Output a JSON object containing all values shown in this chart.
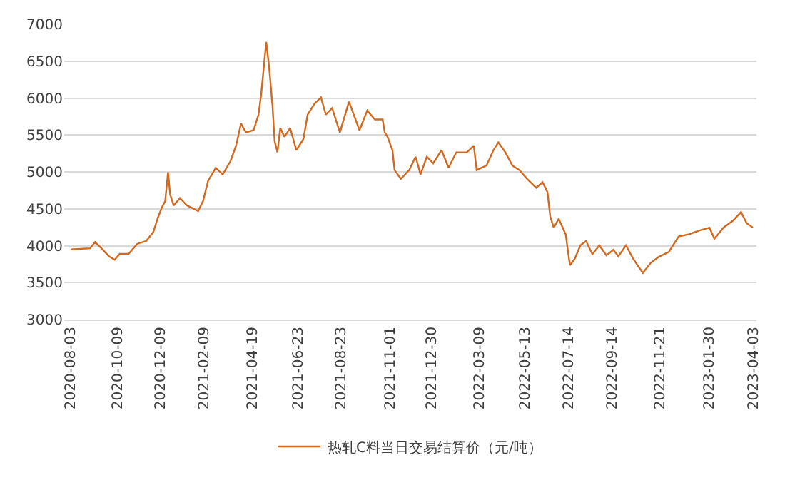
{
  "chart_data": {
    "type": "line",
    "x": [
      "2020-08-03",
      "2020-08-31",
      "2020-09-07",
      "2020-09-18",
      "2020-09-27",
      "2020-10-05",
      "2020-10-12",
      "2020-10-25",
      "2020-11-06",
      "2020-11-19",
      "2020-11-29",
      "2020-12-05",
      "2020-12-11",
      "2020-12-16",
      "2020-12-20",
      "2020-12-23",
      "2020-12-28",
      "2021-01-06",
      "2021-01-16",
      "2021-02-01",
      "2021-02-08",
      "2021-02-15",
      "2021-02-26",
      "2021-03-08",
      "2021-03-19",
      "2021-03-27",
      "2021-04-03",
      "2021-04-10",
      "2021-04-21",
      "2021-04-28",
      "2021-05-02",
      "2021-05-09",
      "2021-05-13",
      "2021-05-18",
      "2021-05-21",
      "2021-05-25",
      "2021-05-29",
      "2021-06-04",
      "2021-06-12",
      "2021-06-21",
      "2021-07-01",
      "2021-07-07",
      "2021-07-17",
      "2021-07-26",
      "2021-08-02",
      "2021-08-11",
      "2021-08-22",
      "2021-09-04",
      "2021-09-19",
      "2021-09-30",
      "2021-10-11",
      "2021-10-22",
      "2021-10-25",
      "2021-10-29",
      "2021-11-05",
      "2021-11-08",
      "2021-11-17",
      "2021-11-29",
      "2021-12-08",
      "2021-12-15",
      "2021-12-24",
      "2022-01-02",
      "2022-01-14",
      "2022-01-24",
      "2022-02-04",
      "2022-02-19",
      "2022-03-01",
      "2022-03-05",
      "2022-03-19",
      "2022-03-29",
      "2022-04-05",
      "2022-04-15",
      "2022-04-25",
      "2022-05-05",
      "2022-05-16",
      "2022-05-29",
      "2022-06-07",
      "2022-06-14",
      "2022-06-18",
      "2022-06-23",
      "2022-06-30",
      "2022-07-10",
      "2022-07-16",
      "2022-07-23",
      "2022-07-31",
      "2022-08-08",
      "2022-08-17",
      "2022-08-27",
      "2022-09-06",
      "2022-09-16",
      "2022-09-23",
      "2022-10-04",
      "2022-10-14",
      "2022-10-28",
      "2022-11-08",
      "2022-11-19",
      "2022-12-04",
      "2022-12-18",
      "2023-01-02",
      "2023-01-16",
      "2023-01-31",
      "2023-02-07",
      "2023-02-20",
      "2023-03-05",
      "2023-03-17",
      "2023-03-25",
      "2023-04-03"
    ],
    "series": [
      {
        "name": "热轧C料当日交易结算价（元/吨）",
        "color": "#d2691e",
        "values": [
          3950,
          3965,
          4050,
          3945,
          3855,
          3810,
          3890,
          3890,
          4025,
          4065,
          4185,
          4365,
          4515,
          4605,
          4995,
          4695,
          4545,
          4645,
          4545,
          4470,
          4605,
          4875,
          5055,
          4965,
          5145,
          5355,
          5655,
          5535,
          5565,
          5775,
          6070,
          6760,
          6430,
          5890,
          5415,
          5265,
          5595,
          5475,
          5595,
          5295,
          5445,
          5775,
          5925,
          6010,
          5775,
          5865,
          5535,
          5950,
          5565,
          5830,
          5710,
          5710,
          5535,
          5475,
          5295,
          5025,
          4905,
          5025,
          5205,
          4965,
          5205,
          5115,
          5295,
          5055,
          5265,
          5265,
          5355,
          5025,
          5085,
          5295,
          5400,
          5265,
          5085,
          5025,
          4905,
          4785,
          4860,
          4725,
          4395,
          4245,
          4365,
          4155,
          3735,
          3825,
          4005,
          4065,
          3885,
          4005,
          3870,
          3945,
          3855,
          4005,
          3825,
          3630,
          3765,
          3845,
          3915,
          4125,
          4155,
          4205,
          4245,
          4095,
          4245,
          4335,
          4455,
          4305,
          4245
        ]
      }
    ],
    "xlim": [
      "2020-07-25",
      "2023-04-08"
    ],
    "xticks": [
      "2020-08-03",
      "2020-10-09",
      "2020-12-09",
      "2021-02-09",
      "2021-04-19",
      "2021-06-23",
      "2021-08-23",
      "2021-11-01",
      "2021-12-30",
      "2022-03-09",
      "2022-05-13",
      "2022-07-14",
      "2022-09-14",
      "2022-11-21",
      "2023-01-30",
      "2023-04-03"
    ],
    "ylim": [
      3000,
      7000
    ],
    "yticks": [
      3000,
      3500,
      4000,
      4500,
      5000,
      5500,
      6000,
      6500,
      7000
    ],
    "grid": "y",
    "legend": "bottom"
  }
}
